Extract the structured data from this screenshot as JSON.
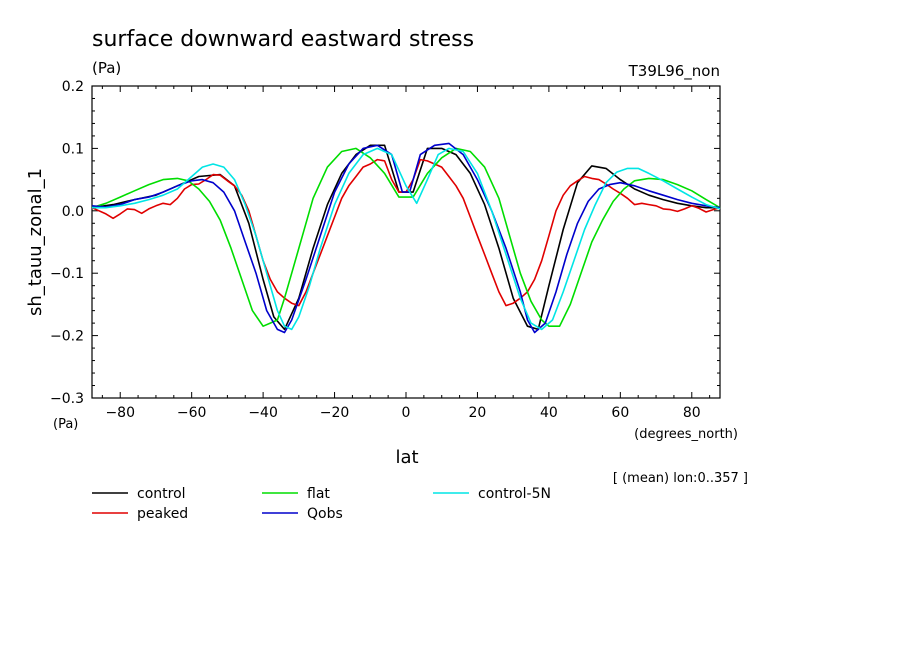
{
  "chart_data": {
    "type": "line",
    "title": "surface downward eastward stress",
    "units": "(Pa)",
    "run_label": "T39L96_non",
    "xlabel": "lat",
    "xunits": "(degrees_north)",
    "ylabel": "sh_tauu_zonal_1",
    "yunits": "(Pa)",
    "annotation": "[ (mean) lon:0..357 ]",
    "xlim": [
      -87.9,
      87.9
    ],
    "ylim": [
      -0.3,
      0.2
    ],
    "xticks": [
      -80,
      -60,
      -40,
      -20,
      0,
      20,
      40,
      60,
      80
    ],
    "yticks": [
      -0.3,
      -0.2,
      -0.1,
      0.0,
      0.1,
      0.2
    ],
    "xtick_labels": [
      "−80",
      "−60",
      "−40",
      "−20",
      "0",
      "20",
      "40",
      "60",
      "80"
    ],
    "ytick_labels": [
      "−0.3",
      "−0.2",
      "−0.1",
      "0.0",
      "0.1",
      "0.2"
    ],
    "series": [
      {
        "name": "control",
        "color": "#000000",
        "x": [
          -87.9,
          -82,
          -76,
          -70,
          -64,
          -58,
          -52,
          -48,
          -44,
          -40,
          -37,
          -34,
          -30,
          -26,
          -22,
          -18,
          -14,
          -10,
          -6,
          -2,
          2,
          6,
          10,
          14,
          18,
          22,
          26,
          30,
          34,
          37,
          40,
          44,
          48,
          52,
          56,
          60,
          64,
          68,
          72,
          76,
          80,
          84,
          87.9
        ],
        "y": [
          0.005,
          0.01,
          0.018,
          0.025,
          0.04,
          0.055,
          0.058,
          0.04,
          -0.02,
          -0.11,
          -0.17,
          -0.19,
          -0.14,
          -0.06,
          0.01,
          0.06,
          0.09,
          0.105,
          0.105,
          0.03,
          0.03,
          0.1,
          0.1,
          0.09,
          0.06,
          0.01,
          -0.06,
          -0.14,
          -0.185,
          -0.19,
          -0.12,
          -0.03,
          0.045,
          0.072,
          0.068,
          0.05,
          0.035,
          0.025,
          0.018,
          0.012,
          0.008,
          0.005,
          0.005
        ]
      },
      {
        "name": "peaked",
        "color": "#e00000",
        "x": [
          -87.9,
          -84,
          -82,
          -80,
          -78,
          -76,
          -74,
          -72,
          -70,
          -68,
          -66,
          -64,
          -62,
          -60,
          -58,
          -56,
          -54,
          -52,
          -50,
          -48,
          -46,
          -44,
          -42,
          -40,
          -38,
          -36,
          -34,
          -32,
          -30,
          -28,
          -26,
          -24,
          -22,
          -20,
          -18,
          -16,
          -14,
          -12,
          -10,
          -8,
          -6,
          -4,
          -2,
          0,
          2,
          4,
          6,
          8,
          10,
          12,
          14,
          16,
          18,
          20,
          22,
          24,
          26,
          28,
          30,
          32,
          34,
          36,
          38,
          40,
          42,
          44,
          46,
          48,
          50,
          52,
          54,
          56,
          58,
          60,
          62,
          64,
          66,
          68,
          70,
          72,
          74,
          76,
          78,
          80,
          82,
          84,
          86,
          87.9
        ],
        "y": [
          0.005,
          -0.005,
          -0.012,
          -0.005,
          0.003,
          0.002,
          -0.004,
          0.003,
          0.008,
          0.012,
          0.01,
          0.02,
          0.035,
          0.042,
          0.043,
          0.05,
          0.058,
          0.057,
          0.048,
          0.04,
          0.025,
          0.0,
          -0.04,
          -0.08,
          -0.11,
          -0.13,
          -0.14,
          -0.148,
          -0.152,
          -0.13,
          -0.1,
          -0.07,
          -0.04,
          -0.01,
          0.02,
          0.04,
          0.055,
          0.07,
          0.075,
          0.082,
          0.08,
          0.05,
          0.03,
          0.03,
          0.05,
          0.082,
          0.08,
          0.075,
          0.07,
          0.055,
          0.04,
          0.02,
          -0.01,
          -0.04,
          -0.07,
          -0.1,
          -0.13,
          -0.152,
          -0.148,
          -0.14,
          -0.13,
          -0.11,
          -0.08,
          -0.04,
          0.0,
          0.025,
          0.04,
          0.048,
          0.055,
          0.052,
          0.05,
          0.043,
          0.035,
          0.028,
          0.02,
          0.01,
          0.012,
          0.01,
          0.008,
          0.003,
          0.002,
          -0.001,
          0.003,
          0.008,
          0.004,
          -0.002,
          0.002,
          0.005
        ]
      },
      {
        "name": "flat",
        "color": "#00dd00",
        "x": [
          -87.9,
          -84,
          -80,
          -76,
          -72,
          -68,
          -64,
          -61,
          -58,
          -55,
          -52,
          -49,
          -46,
          -43,
          -40,
          -38,
          -36,
          -34,
          -32,
          -29,
          -26,
          -22,
          -18,
          -14,
          -10,
          -6,
          -2,
          2,
          6,
          10,
          14,
          18,
          22,
          26,
          29,
          32,
          35,
          38,
          40,
          43,
          46,
          49,
          52,
          55,
          58,
          61,
          64,
          68,
          72,
          76,
          80,
          84,
          87.9
        ],
        "y": [
          0.005,
          0.012,
          0.022,
          0.032,
          0.042,
          0.05,
          0.052,
          0.048,
          0.035,
          0.015,
          -0.015,
          -0.06,
          -0.11,
          -0.16,
          -0.185,
          -0.18,
          -0.175,
          -0.14,
          -0.1,
          -0.04,
          0.02,
          0.07,
          0.095,
          0.1,
          0.085,
          0.06,
          0.022,
          0.022,
          0.06,
          0.085,
          0.1,
          0.095,
          0.07,
          0.02,
          -0.04,
          -0.1,
          -0.145,
          -0.175,
          -0.185,
          -0.185,
          -0.15,
          -0.1,
          -0.05,
          -0.015,
          0.015,
          0.035,
          0.048,
          0.052,
          0.05,
          0.042,
          0.032,
          0.018,
          0.005
        ]
      },
      {
        "name": "Qobs",
        "color": "#0000cc",
        "x": [
          -87.9,
          -84,
          -80,
          -76,
          -72,
          -68,
          -64,
          -60,
          -57,
          -54,
          -51,
          -48,
          -45,
          -42,
          -39,
          -36,
          -34,
          -32,
          -28,
          -24,
          -20,
          -16,
          -12,
          -8,
          -4,
          -1,
          1,
          4,
          8,
          12,
          16,
          20,
          24,
          28,
          32,
          34,
          36,
          39,
          42,
          45,
          48,
          51,
          54,
          57,
          60,
          64,
          68,
          72,
          76,
          80,
          84,
          87.9
        ],
        "y": [
          0.008,
          0.006,
          0.01,
          0.018,
          0.022,
          0.03,
          0.04,
          0.048,
          0.05,
          0.045,
          0.03,
          0.0,
          -0.05,
          -0.1,
          -0.16,
          -0.19,
          -0.195,
          -0.175,
          -0.11,
          -0.04,
          0.03,
          0.075,
          0.1,
          0.105,
          0.09,
          0.03,
          0.03,
          0.09,
          0.105,
          0.108,
          0.09,
          0.05,
          0.0,
          -0.06,
          -0.13,
          -0.175,
          -0.195,
          -0.18,
          -0.13,
          -0.07,
          -0.02,
          0.015,
          0.035,
          0.042,
          0.045,
          0.04,
          0.032,
          0.025,
          0.018,
          0.012,
          0.008,
          0.005
        ]
      },
      {
        "name": "control-5N",
        "color": "#00e5e5",
        "x": [
          -87.9,
          -84,
          -80,
          -76,
          -72,
          -68,
          -64,
          -60,
          -57,
          -54,
          -51,
          -48,
          -45,
          -42,
          -39,
          -36,
          -34,
          -32,
          -30,
          -27,
          -24,
          -20,
          -16,
          -12,
          -8,
          -4,
          0,
          3,
          6,
          9,
          12,
          16,
          20,
          24,
          28,
          32,
          35,
          38,
          41,
          44,
          47,
          50,
          53,
          56,
          59,
          62,
          65,
          68,
          72,
          76,
          80,
          84,
          87.9
        ],
        "y": [
          0.005,
          0.005,
          0.008,
          0.012,
          0.018,
          0.025,
          0.035,
          0.055,
          0.07,
          0.075,
          0.07,
          0.05,
          0.01,
          -0.04,
          -0.1,
          -0.16,
          -0.185,
          -0.19,
          -0.17,
          -0.12,
          -0.06,
          0.01,
          0.06,
          0.09,
          0.1,
          0.09,
          0.04,
          0.012,
          0.05,
          0.09,
          0.1,
          0.095,
          0.06,
          0.0,
          -0.07,
          -0.14,
          -0.18,
          -0.19,
          -0.175,
          -0.13,
          -0.08,
          -0.03,
          0.01,
          0.045,
          0.062,
          0.068,
          0.068,
          0.06,
          0.048,
          0.035,
          0.022,
          0.01,
          0.003
        ]
      }
    ],
    "legend_placement": "bottom-left"
  }
}
